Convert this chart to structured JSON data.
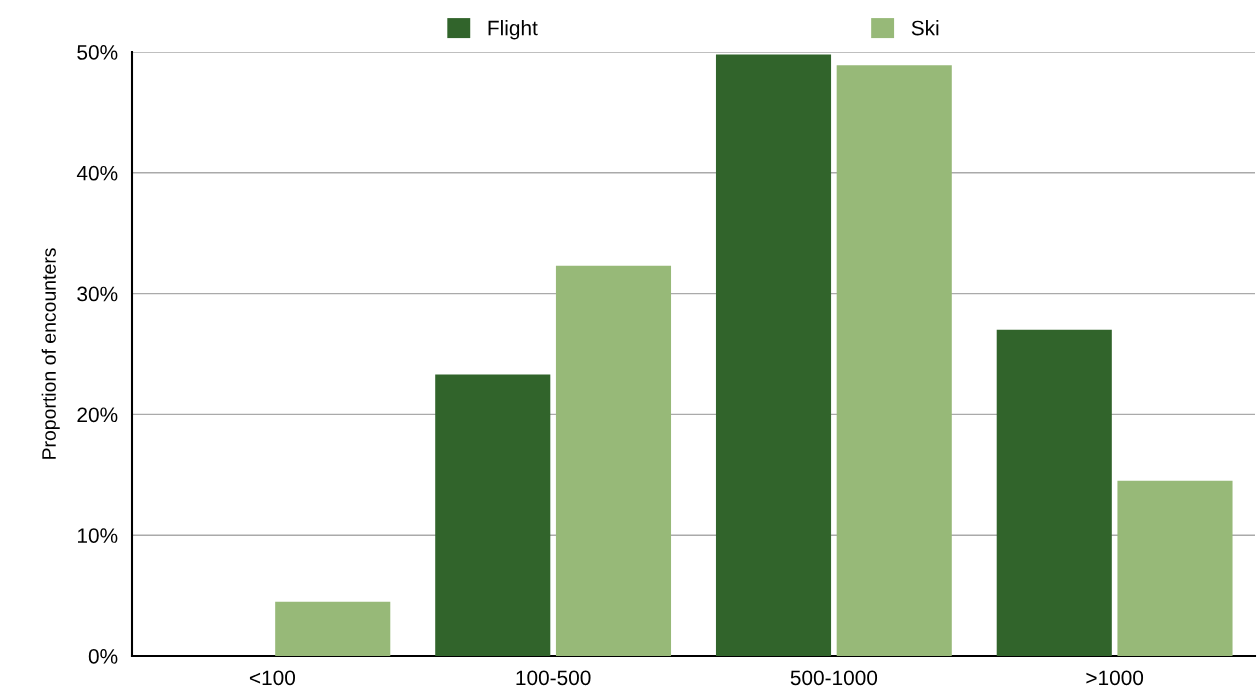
{
  "chart_data": {
    "type": "bar",
    "ylabel": "Proportion of encounters",
    "categories": [
      "<100",
      "100-500",
      "500-1000",
      ">1000"
    ],
    "series": [
      {
        "name": "Flight",
        "color": "#31642b",
        "values": [
          0,
          23.3,
          49.8,
          27.0
        ]
      },
      {
        "name": "Ski",
        "color": "#97b978",
        "values": [
          4.5,
          32.3,
          48.9,
          14.5
        ]
      }
    ],
    "ylim": [
      0,
      50
    ],
    "yticks": [
      {
        "value": 0,
        "label": "0%"
      },
      {
        "value": 10,
        "label": "10%"
      },
      {
        "value": 20,
        "label": "20%"
      },
      {
        "value": 30,
        "label": "30%"
      },
      {
        "value": 40,
        "label": "40%"
      },
      {
        "value": 50,
        "label": "50%"
      }
    ],
    "grid": "y",
    "legend": "top"
  }
}
